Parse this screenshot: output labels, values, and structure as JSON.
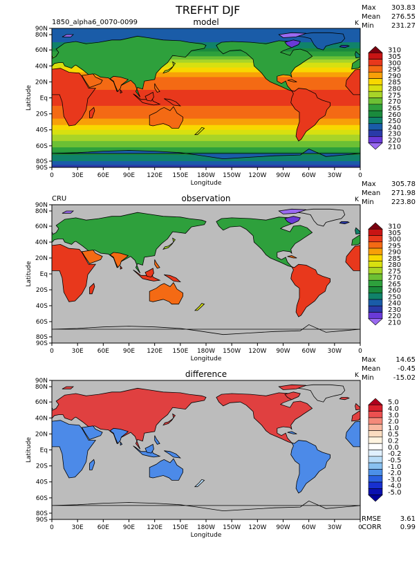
{
  "page": {
    "title": "TREFHT DJF"
  },
  "chart_data": [
    {
      "type": "heatmap",
      "title": "model",
      "case_label": "1850_alpha6_0070-0099",
      "units": "K",
      "stats": [
        {
          "label": "Max",
          "value": "303.83"
        },
        {
          "label": "Mean",
          "value": "276.55"
        },
        {
          "label": "Min",
          "value": "231.27"
        }
      ],
      "xlabel": "Longitude",
      "ylabel": "Latitude",
      "x_ticks": [
        "0",
        "30E",
        "60E",
        "90E",
        "120E",
        "150E",
        "180W",
        "150W",
        "120W",
        "90W",
        "60W",
        "30W",
        "0"
      ],
      "y_ticks": [
        "90N",
        "80N",
        "60N",
        "40N",
        "20N",
        "Eq",
        "20S",
        "40S",
        "60S",
        "80S",
        "90S"
      ],
      "colorbar": {
        "levels": [
          "310",
          "305",
          "300",
          "295",
          "290",
          "285",
          "280",
          "275",
          "270",
          "265",
          "260",
          "250",
          "240",
          "230",
          "220",
          "210"
        ],
        "colors": [
          "#7a0010",
          "#c81414",
          "#e8381c",
          "#f46a14",
          "#f8a008",
          "#f8d800",
          "#d8e010",
          "#a8d428",
          "#6cc034",
          "#2ea03c",
          "#1a8a3c",
          "#10826a",
          "#1a5ca8",
          "#2a3aa8",
          "#6a3ad8",
          "#9a6af0"
        ]
      }
    },
    {
      "type": "heatmap",
      "title": "observation",
      "case_label": "CRU",
      "units": "K",
      "stats": [
        {
          "label": "Max",
          "value": "305.78"
        },
        {
          "label": "Mean",
          "value": "271.98"
        },
        {
          "label": "Min",
          "value": "223.80"
        }
      ],
      "xlabel": "Longitude",
      "ylabel": "Latitude",
      "x_ticks": [
        "0",
        "30E",
        "60E",
        "90E",
        "120E",
        "150E",
        "180W",
        "150W",
        "120W",
        "90W",
        "60W",
        "30W",
        "0"
      ],
      "y_ticks": [
        "90N",
        "80N",
        "60N",
        "40N",
        "20N",
        "Eq",
        "20S",
        "40S",
        "60S",
        "80S",
        "90S"
      ],
      "colorbar": {
        "levels": [
          "310",
          "305",
          "300",
          "295",
          "290",
          "285",
          "280",
          "275",
          "270",
          "265",
          "260",
          "250",
          "240",
          "230",
          "220",
          "210"
        ],
        "colors": [
          "#7a0010",
          "#c81414",
          "#e8381c",
          "#f46a14",
          "#f8a008",
          "#f8d800",
          "#d8e010",
          "#a8d428",
          "#6cc034",
          "#2ea03c",
          "#1a8a3c",
          "#10826a",
          "#1a5ca8",
          "#2a3aa8",
          "#6a3ad8",
          "#9a6af0"
        ]
      }
    },
    {
      "type": "heatmap",
      "title": "difference",
      "case_label": "",
      "units": "K",
      "stats": [
        {
          "label": "Max",
          "value": "14.65"
        },
        {
          "label": "Mean",
          "value": "-0.45"
        },
        {
          "label": "Min",
          "value": "-15.02"
        }
      ],
      "bottom_stats": [
        {
          "label": "RMSE",
          "value": "3.61"
        },
        {
          "label": "CORR",
          "value": "0.99"
        }
      ],
      "xlabel": "Longitude",
      "ylabel": "Latitude",
      "x_ticks": [
        "0",
        "30E",
        "60E",
        "90E",
        "120E",
        "150E",
        "180W",
        "150W",
        "120W",
        "90W",
        "60W",
        "30W",
        "0"
      ],
      "y_ticks": [
        "90N",
        "80N",
        "60N",
        "40N",
        "20N",
        "Eq",
        "20S",
        "40S",
        "60S",
        "80S",
        "90S"
      ],
      "colorbar": {
        "levels": [
          "5.0",
          "4.0",
          "3.0",
          "2.0",
          "1.0",
          "0.5",
          "0.2",
          "0.0",
          "-0.2",
          "-0.5",
          "-1.0",
          "-2.0",
          "-3.0",
          "-4.0",
          "-5.0"
        ],
        "colors": [
          "#b0001c",
          "#d8202c",
          "#ec5050",
          "#f48a7a",
          "#f8b8a0",
          "#fadcc0",
          "#fff4e0",
          "#ffffff",
          "#e0f0ff",
          "#b8dcf8",
          "#88c0f0",
          "#4c90e8",
          "#2a60e0",
          "#1830d0",
          "#0a10b0",
          "#00009a"
        ]
      }
    }
  ]
}
